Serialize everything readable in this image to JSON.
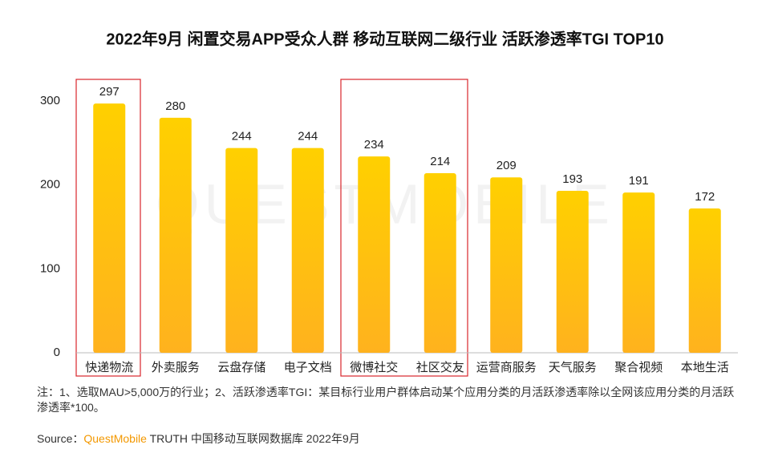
{
  "chart_data": {
    "type": "bar",
    "title": "2022年9月 闲置交易APP受众人群 移动互联网二级行业 活跃渗透率TGI TOP10",
    "categories": [
      "快递物流",
      "外卖服务",
      "云盘存储",
      "电子文档",
      "微博社交",
      "社区交友",
      "运营商服务",
      "天气服务",
      "聚合视频",
      "本地生活"
    ],
    "values": [
      297,
      280,
      244,
      244,
      234,
      214,
      209,
      193,
      191,
      172
    ],
    "color": "#ffc20e",
    "ylim": [
      0,
      300
    ],
    "yticks": [
      0,
      100,
      200,
      300
    ],
    "grid": false,
    "watermark": "QUESTMOBILE",
    "notes": "注：1、选取MAU>5,000万的行业；2、活跃渗透率TGI：某目标行业用户群体启动某个应用分类的月活跃渗透率除以全网该应用分类的月活跃渗透率*100。",
    "source_label": "Source：",
    "source_brand": "QuestMobile",
    "source_text": "TRUTH 中国移动互联网数据库 2022年9月"
  }
}
